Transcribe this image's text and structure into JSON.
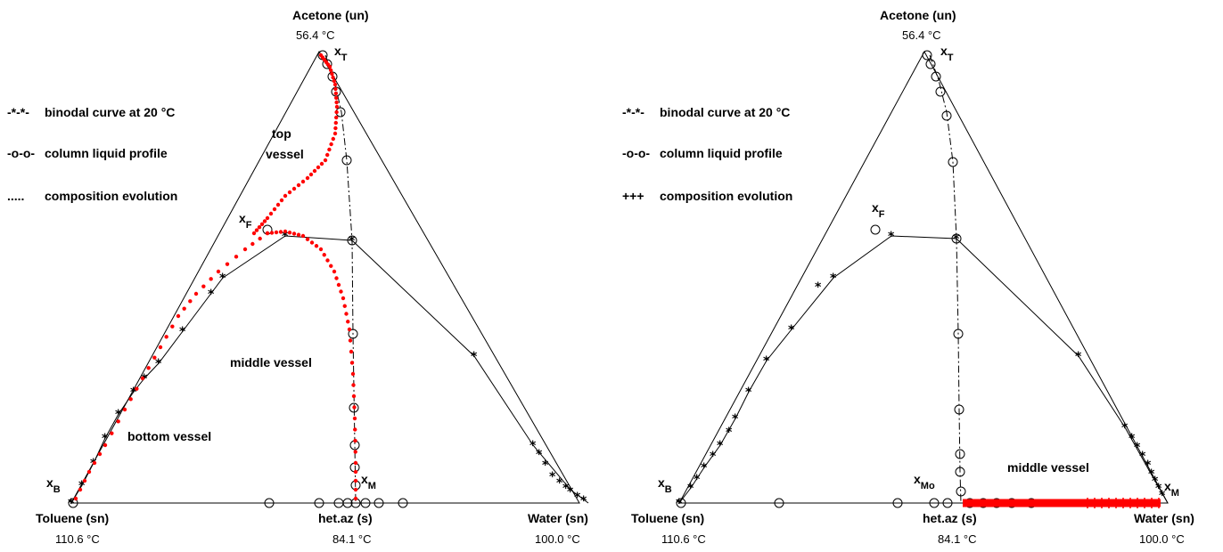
{
  "diagrams": [
    {
      "top_vertex": {
        "name": "Acetone (un)",
        "temp": "56.4 °C"
      },
      "left_vertex": {
        "name": "Toluene (sn)",
        "temp": "110.6 °C"
      },
      "mid_point": {
        "name": "het.az (s)",
        "temp": "84.1 °C"
      },
      "right_vertex": {
        "name": "Water (sn)",
        "temp": "100.0 °C"
      },
      "point_labels": {
        "top": "x",
        "top_sub": "T",
        "feed": "x",
        "feed_sub": "F",
        "bottom": "x",
        "bottom_sub": "B",
        "middle": "x",
        "middle_sub": "M"
      },
      "legend": [
        {
          "symbol": "-*-*-",
          "text": "binodal curve at 20 °C"
        },
        {
          "symbol": "-o-o-",
          "text": "column liquid profile"
        },
        {
          "symbol": ".....",
          "text": "composition evolution"
        }
      ],
      "region_labels": [
        "top",
        "vessel",
        "middle vessel",
        "bottom vessel"
      ],
      "evolution_color": "#ff0000"
    },
    {
      "top_vertex": {
        "name": "Acetone (un)",
        "temp": "56.4 °C"
      },
      "left_vertex": {
        "name": "Toluene (sn)",
        "temp": "110.6 °C"
      },
      "mid_point": {
        "name": "het.az (s)",
        "temp": "84.1 °C"
      },
      "right_vertex": {
        "name": "Water (sn)",
        "temp": "100.0 °C"
      },
      "point_labels": {
        "top": "x",
        "top_sub": "T",
        "feed": "x",
        "feed_sub": "F",
        "bottom": "x",
        "bottom_sub": "B",
        "middle": "x",
        "middle_sub": "Mo",
        "right": "x",
        "right_sub": "M"
      },
      "legend": [
        {
          "symbol": "-*-*-",
          "text": "binodal curve at 20 °C"
        },
        {
          "symbol": "-o-o-",
          "text": "column liquid profile"
        },
        {
          "symbol": "+++",
          "text": "composition evolution"
        }
      ],
      "region_labels": [
        "middle vessel"
      ],
      "evolution_color": "#ff0000"
    }
  ]
}
